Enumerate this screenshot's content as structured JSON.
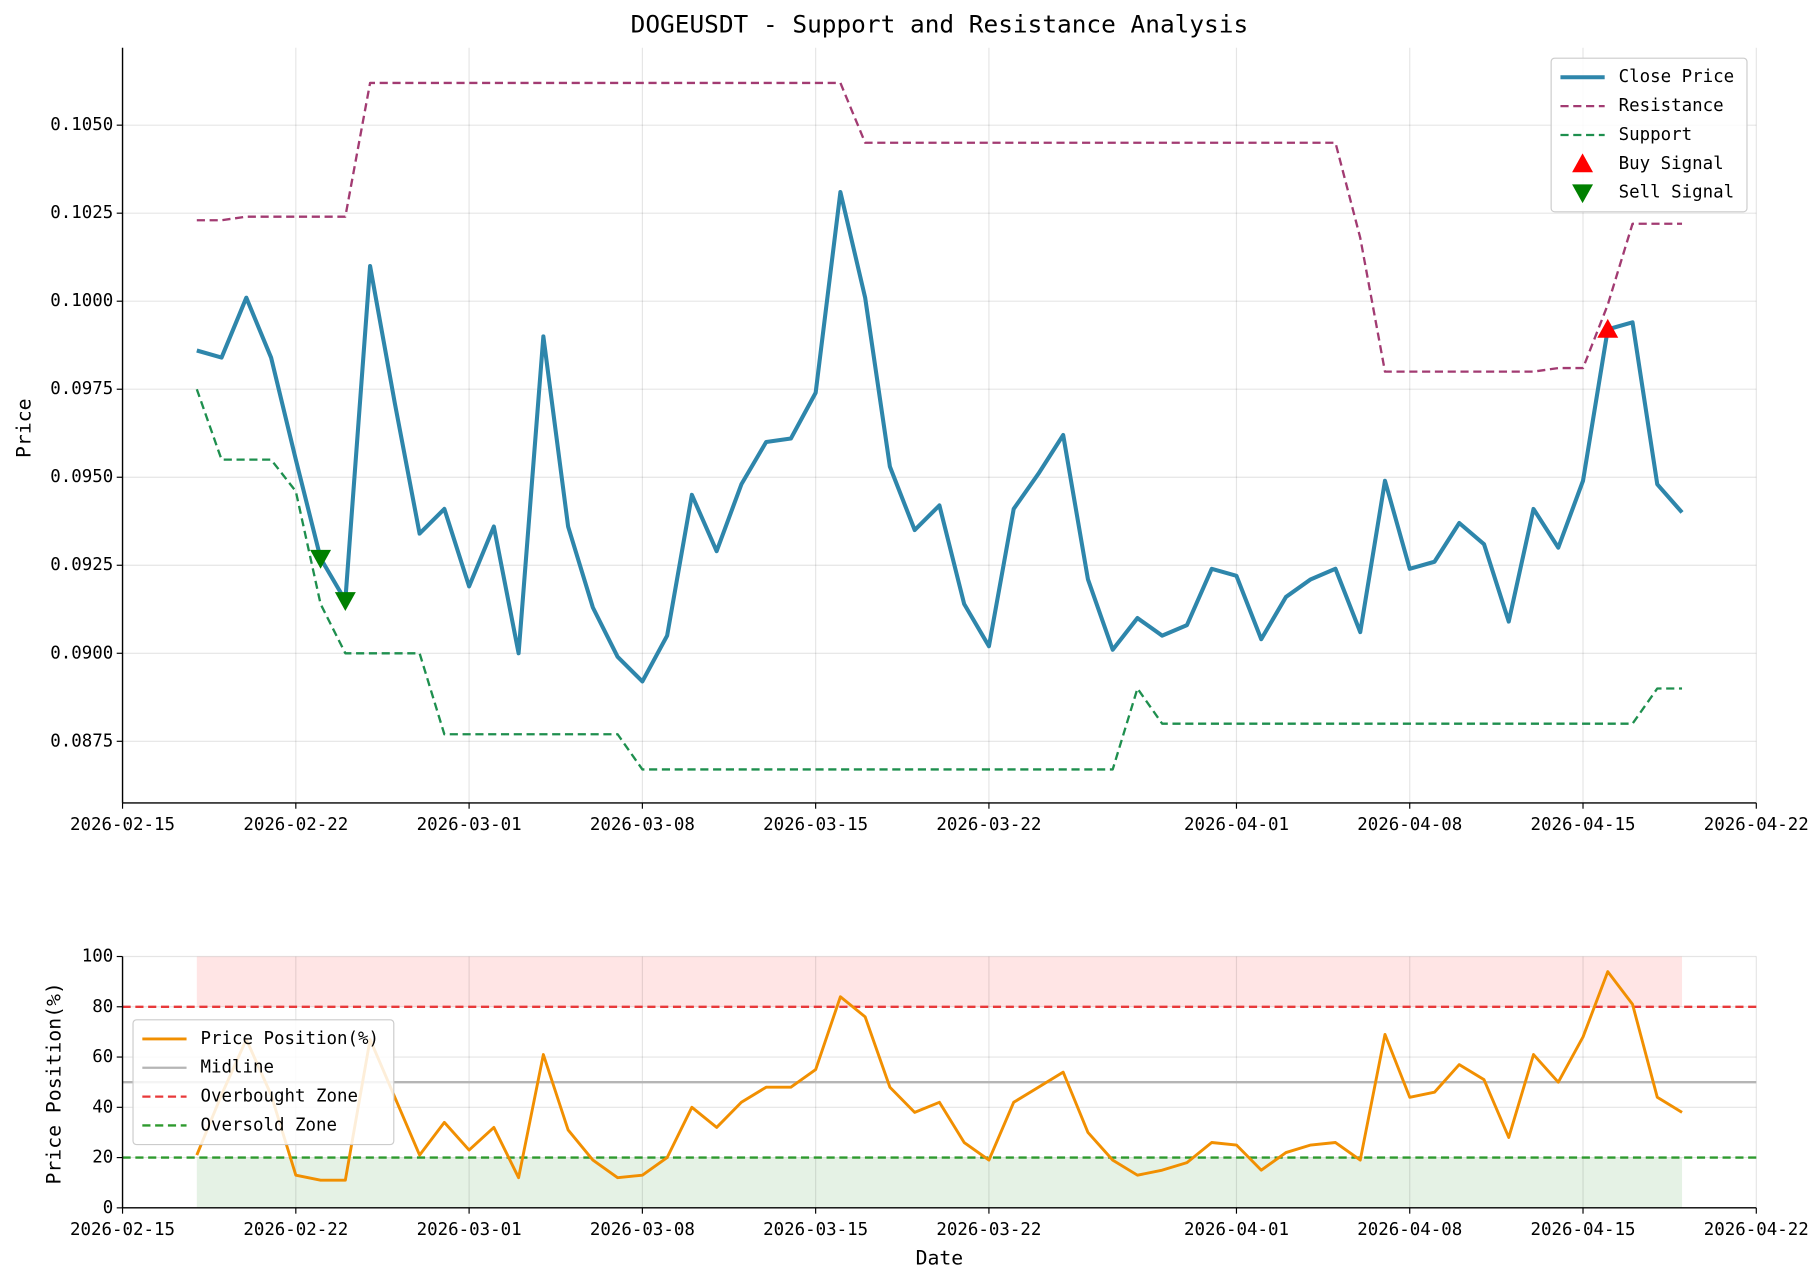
{
  "chart_data": [
    {
      "type": "line",
      "title": "DOGEUSDT - Support and Resistance Analysis",
      "ylabel": "Price",
      "x": [
        "2026-02-18",
        "2026-02-19",
        "2026-02-20",
        "2026-02-21",
        "2026-02-22",
        "2026-02-23",
        "2026-02-24",
        "2026-02-25",
        "2026-02-26",
        "2026-02-27",
        "2026-02-28",
        "2026-03-01",
        "2026-03-02",
        "2026-03-03",
        "2026-03-04",
        "2026-03-05",
        "2026-03-06",
        "2026-03-07",
        "2026-03-08",
        "2026-03-09",
        "2026-03-10",
        "2026-03-11",
        "2026-03-12",
        "2026-03-13",
        "2026-03-14",
        "2026-03-15",
        "2026-03-16",
        "2026-03-17",
        "2026-03-18",
        "2026-03-19",
        "2026-03-20",
        "2026-03-21",
        "2026-03-22",
        "2026-03-23",
        "2026-03-24",
        "2026-03-25",
        "2026-03-26",
        "2026-03-27",
        "2026-03-28",
        "2026-03-29",
        "2026-03-30",
        "2026-03-31",
        "2026-04-01",
        "2026-04-02",
        "2026-04-03",
        "2026-04-04",
        "2026-04-05",
        "2026-04-06",
        "2026-04-07",
        "2026-04-08",
        "2026-04-09",
        "2026-04-10",
        "2026-04-11",
        "2026-04-12",
        "2026-04-13",
        "2026-04-14",
        "2026-04-15",
        "2026-04-16",
        "2026-04-17",
        "2026-04-18",
        "2026-04-19"
      ],
      "series": [
        {
          "name": "Close Price",
          "color": "#2e86ab",
          "linestyle": "solid",
          "width": 3.5,
          "values": [
            0.0986,
            0.0984,
            0.1001,
            0.0984,
            0.0955,
            0.0927,
            0.0915,
            0.101,
            0.0971,
            0.0934,
            0.0941,
            0.0919,
            0.0936,
            0.09,
            0.099,
            0.0936,
            0.0913,
            0.0899,
            0.0892,
            0.0905,
            0.0945,
            0.0929,
            0.0948,
            0.096,
            0.0961,
            0.0974,
            0.1031,
            0.1001,
            0.0953,
            0.0935,
            0.0942,
            0.0914,
            0.0902,
            0.0941,
            0.0951,
            0.0962,
            0.0921,
            0.0901,
            0.091,
            0.0905,
            0.0908,
            0.0924,
            0.0922,
            0.0904,
            0.0916,
            0.0921,
            0.0924,
            0.0906,
            0.0949,
            0.0924,
            0.0926,
            0.0937,
            0.0931,
            0.0909,
            0.0941,
            0.093,
            0.0949,
            0.0992,
            0.0994,
            0.0948,
            0.094
          ]
        },
        {
          "name": "Resistance",
          "color": "#a23b72",
          "linestyle": "dashed",
          "width": 2,
          "values": [
            0.1023,
            0.1023,
            0.1024,
            0.1024,
            0.1024,
            0.1024,
            0.1024,
            0.1062,
            0.1062,
            0.1062,
            0.1062,
            0.1062,
            0.1062,
            0.1062,
            0.1062,
            0.1062,
            0.1062,
            0.1062,
            0.1062,
            0.1062,
            0.1062,
            0.1062,
            0.1062,
            0.1062,
            0.1062,
            0.1062,
            0.1062,
            0.1045,
            0.1045,
            0.1045,
            0.1045,
            0.1045,
            0.1045,
            0.1045,
            0.1045,
            0.1045,
            0.1045,
            0.1045,
            0.1045,
            0.1045,
            0.1045,
            0.1045,
            0.1045,
            0.1045,
            0.1045,
            0.1045,
            0.1045,
            0.1018,
            0.098,
            0.098,
            0.098,
            0.098,
            0.098,
            0.098,
            0.098,
            0.0981,
            0.0981,
            0.0999,
            0.1022,
            0.1022,
            0.1022
          ]
        },
        {
          "name": "Support",
          "color": "#1e8f4e",
          "linestyle": "dashed",
          "width": 2,
          "values": [
            0.0975,
            0.0955,
            0.0955,
            0.0955,
            0.0946,
            0.0914,
            0.09,
            0.09,
            0.09,
            0.09,
            0.0877,
            0.0877,
            0.0877,
            0.0877,
            0.0877,
            0.0877,
            0.0877,
            0.0877,
            0.0867,
            0.0867,
            0.0867,
            0.0867,
            0.0867,
            0.0867,
            0.0867,
            0.0867,
            0.0867,
            0.0867,
            0.0867,
            0.0867,
            0.0867,
            0.0867,
            0.0867,
            0.0867,
            0.0867,
            0.0867,
            0.0867,
            0.0867,
            0.089,
            0.088,
            0.088,
            0.088,
            0.088,
            0.088,
            0.088,
            0.088,
            0.088,
            0.088,
            0.088,
            0.088,
            0.088,
            0.088,
            0.088,
            0.088,
            0.088,
            0.088,
            0.088,
            0.088,
            0.088,
            0.089,
            0.089
          ]
        }
      ],
      "signals": [
        {
          "name": "Buy Signal",
          "color": "#ff0000",
          "marker": "triangle-up",
          "x": [
            "2026-04-16"
          ],
          "values": [
            0.0992
          ]
        },
        {
          "name": "Sell Signal",
          "color": "#008000",
          "marker": "triangle-down",
          "x": [
            "2026-02-23",
            "2026-02-24"
          ],
          "values": [
            0.0927,
            0.0915
          ]
        }
      ],
      "xlim": [
        "2026-02-15",
        "2026-04-22"
      ],
      "xticks": [
        "2026-02-15",
        "2026-02-22",
        "2026-03-01",
        "2026-03-08",
        "2026-03-15",
        "2026-03-22",
        "2026-04-01",
        "2026-04-08",
        "2026-04-15",
        "2026-04-22"
      ],
      "ylim": [
        0.08575,
        0.1072
      ],
      "yticks": [
        0.0875,
        {
          "value": 0.09,
          "label": "0.0900"
        },
        0.0925,
        {
          "value": 0.095,
          "label": "0.0950"
        },
        0.0975,
        {
          "value": 0.1,
          "label": "0.1000"
        },
        0.1025,
        {
          "value": 0.105,
          "label": "0.1050"
        }
      ],
      "grid": true,
      "legend": "upper right"
    },
    {
      "type": "line",
      "ylabel": "Price Position(%)",
      "xlabel": "Date",
      "x": [
        "2026-02-18",
        "2026-02-19",
        "2026-02-20",
        "2026-02-21",
        "2026-02-22",
        "2026-02-23",
        "2026-02-24",
        "2026-02-25",
        "2026-02-26",
        "2026-02-27",
        "2026-02-28",
        "2026-03-01",
        "2026-03-02",
        "2026-03-03",
        "2026-03-04",
        "2026-03-05",
        "2026-03-06",
        "2026-03-07",
        "2026-03-08",
        "2026-03-09",
        "2026-03-10",
        "2026-03-11",
        "2026-03-12",
        "2026-03-13",
        "2026-03-14",
        "2026-03-15",
        "2026-03-16",
        "2026-03-17",
        "2026-03-18",
        "2026-03-19",
        "2026-03-20",
        "2026-03-21",
        "2026-03-22",
        "2026-03-23",
        "2026-03-24",
        "2026-03-25",
        "2026-03-26",
        "2026-03-27",
        "2026-03-28",
        "2026-03-29",
        "2026-03-30",
        "2026-03-31",
        "2026-04-01",
        "2026-04-02",
        "2026-04-03",
        "2026-04-04",
        "2026-04-05",
        "2026-04-06",
        "2026-04-07",
        "2026-04-08",
        "2026-04-09",
        "2026-04-10",
        "2026-04-11",
        "2026-04-12",
        "2026-04-13",
        "2026-04-14",
        "2026-04-15",
        "2026-04-16",
        "2026-04-17",
        "2026-04-18",
        "2026-04-19"
      ],
      "series": [
        {
          "name": "Price Position(%)",
          "color": "#f18f01",
          "linestyle": "solid",
          "width": 2.5,
          "values": [
            21,
            45,
            67,
            45,
            13,
            11,
            11,
            67,
            44,
            21,
            34,
            23,
            32,
            12,
            61,
            31,
            19,
            12,
            13,
            20,
            40,
            32,
            42,
            48,
            48,
            55,
            84,
            76,
            48,
            38,
            42,
            26,
            19,
            42,
            48,
            54,
            30,
            19,
            13,
            15,
            18,
            26,
            25,
            15,
            22,
            25,
            26,
            19,
            69,
            44,
            46,
            57,
            51,
            28,
            61,
            50,
            68,
            94,
            81,
            44,
            38
          ]
        }
      ],
      "hlines": [
        {
          "name": "Midline",
          "value": 50,
          "color": "#b5b5b5",
          "linestyle": "solid"
        },
        {
          "name": "Overbought Zone",
          "value": 80,
          "color": "#e8393a",
          "linestyle": "dashed"
        },
        {
          "name": "Oversold Zone",
          "value": 20,
          "color": "#2e9a2e",
          "linestyle": "dashed"
        }
      ],
      "zones": [
        {
          "range": [
            80,
            100
          ],
          "color": "#ff0000"
        },
        {
          "range": [
            0,
            20
          ],
          "color": "#008000"
        }
      ],
      "xlim": [
        "2026-02-15",
        "2026-04-22"
      ],
      "xticks": [
        "2026-02-15",
        "2026-02-22",
        "2026-03-01",
        "2026-03-08",
        "2026-03-15",
        "2026-03-22",
        "2026-04-01",
        "2026-04-08",
        "2026-04-15",
        "2026-04-22"
      ],
      "ylim": [
        0,
        100
      ],
      "yticks": [
        0,
        20,
        40,
        60,
        80,
        100
      ],
      "grid": true,
      "legend": "center left"
    }
  ]
}
